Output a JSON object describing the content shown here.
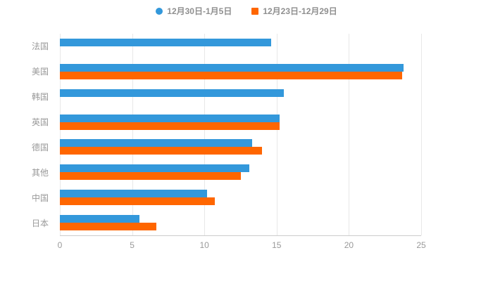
{
  "chart": {
    "background": "#ffffff",
    "label_color": "#999999",
    "grid_color": "#e8e8e8",
    "axis_color": "#cccccc"
  },
  "legend": {
    "items": [
      {
        "label": "12月30日-1月5日",
        "color": "#3398DB",
        "marker": "circle"
      },
      {
        "label": "12月23日-12月29日",
        "color": "#FF6600",
        "marker": "rect"
      }
    ]
  },
  "chart_data": {
    "type": "bar",
    "orientation": "horizontal",
    "title": "",
    "categories": [
      "法国",
      "美国",
      "韩国",
      "英国",
      "德国",
      "其他",
      "中国",
      "日本"
    ],
    "series": [
      {
        "name": "12月30日-1月5日",
        "color": "#3398DB",
        "values": [
          14.6,
          23.8,
          15.5,
          15.2,
          13.3,
          13.1,
          10.2,
          5.5
        ]
      },
      {
        "name": "12月23日-12月29日",
        "color": "#FF6600",
        "values": [
          null,
          23.7,
          null,
          15.2,
          14.0,
          12.5,
          10.7,
          6.7
        ]
      }
    ],
    "xlim": [
      0,
      25
    ],
    "xticks": [
      0,
      5,
      10,
      15,
      20,
      25
    ],
    "grid": true,
    "legend_position": "top"
  }
}
